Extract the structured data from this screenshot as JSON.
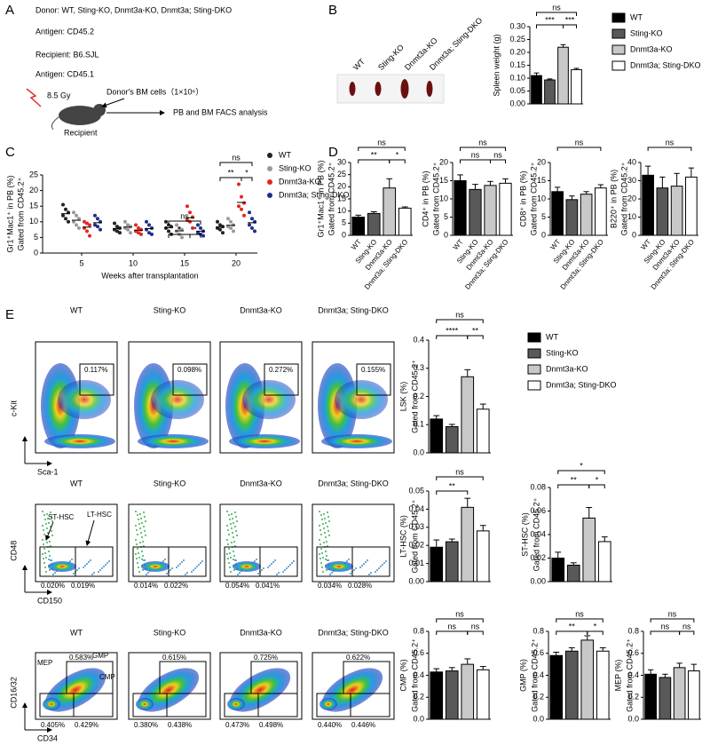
{
  "panels": [
    "A",
    "B",
    "C",
    "D",
    "E"
  ],
  "panel_a": {
    "donor": "Donor: WT, Sting-KO, Dnmt3a-KO, Dnmt3a; Sting-DKO",
    "donor_antigen": "Antigen: CD45.2",
    "recipient": "Recipient: B6.SJL",
    "recipient_antigen": "Antigen: CD45.1",
    "dose": "8.5 Gy",
    "cells": "Donor's BM cells（1×10⁶）",
    "analysis": "PB and BM FACS analysis",
    "mouse_label": "Recipient"
  },
  "panel_b": {
    "photo_labels": [
      "WT",
      "Sting-KO",
      "Dnmt3a-KO",
      "Dnmt3a; Sting-DKO"
    ]
  },
  "flow": {
    "rows": [
      {
        "titles": [
          "WT",
          "Sting-KO",
          "Dnmt3a-KO",
          "Dnmt3a; Sting-DKO"
        ],
        "gates": [
          [
            "0.117%"
          ],
          [
            "0.098%"
          ],
          [
            "0.272%"
          ],
          [
            "0.155%"
          ]
        ],
        "labels": [],
        "x_axis": "Sca-1",
        "y_axis": "c-Kit"
      },
      {
        "titles": [
          "WT",
          "Sting-KO",
          "Dnmt3a-KO",
          "Dnmt3a; Sting-DKO"
        ],
        "gates": [
          [
            "0.020%",
            "0.019%"
          ],
          [
            "0.014%",
            "0.022%"
          ],
          [
            "0.054%",
            "0.041%"
          ],
          [
            "0.034%",
            "0.028%"
          ]
        ],
        "labels": [
          "ST-HSC",
          "LT-HSC"
        ],
        "x_axis": "CD150",
        "y_axis": "CD48"
      },
      {
        "titles": [
          "WT",
          "Sting-KO",
          "Dnmt3a-KO",
          "Dnmt3a; Sting-DKO"
        ],
        "gates": [
          [
            "0.583%",
            "0.405%",
            "0.429%"
          ],
          [
            "0.615%",
            "0.380%",
            "0.438%"
          ],
          [
            "0.725%",
            "0.473%",
            "0.498%"
          ],
          [
            "0.622%",
            "0.440%",
            "0.446%"
          ]
        ],
        "labels": [
          "MEP",
          "GMP",
          "CMP"
        ],
        "x_axis": "CD34",
        "y_axis": "CD16/32"
      }
    ]
  },
  "chart_data": [
    {
      "type": "bar",
      "ylabel": [
        "Spleen weight (g)"
      ],
      "values": [
        0.11,
        0.093,
        0.22,
        0.133
      ],
      "errors": [
        0.01,
        0.004,
        0.01,
        0.005
      ],
      "colors": [
        "#000000",
        "#595959",
        "#c8c8c8",
        "#ffffff"
      ],
      "ylim": [
        0,
        0.3
      ],
      "yticks": [
        {
          "value": 0,
          "label": "0.00"
        },
        0.05,
        {
          "value": 0.1,
          "label": "0.10"
        },
        0.15,
        {
          "value": 0.2,
          "label": "0.20"
        },
        0.25,
        {
          "value": 0.3,
          "label": "0.30"
        }
      ],
      "significance": [
        "ns",
        "***",
        "***"
      ],
      "legend": [
        "WT",
        "Sting-KO",
        "Dnmt3a-KO",
        "Dnmt3a; Sting-DKO"
      ]
    },
    {
      "type": "dot",
      "ylabel": [
        "Gr1⁺Mac1⁺ in PB (%)",
        "Gated from CD45.2⁺"
      ],
      "xlabel": "Weeks after transplantation",
      "categories": [
        "5",
        "10",
        "15",
        "20"
      ],
      "ylim": [
        0,
        25
      ],
      "yticks": [
        0,
        5,
        10,
        15,
        20,
        25
      ],
      "series": [
        {
          "name": "WT",
          "color": "#222222",
          "values": [
            12.6,
            7.8,
            8.1,
            8.3
          ],
          "points": [
            [
              15.5,
              14,
              13,
              12,
              11,
              10
            ],
            [
              9.5,
              8.5,
              8,
              7.5,
              7,
              6.5
            ],
            [
              10,
              9,
              8.5,
              8,
              7,
              6
            ],
            [
              10,
              9,
              8.5,
              8,
              7.5,
              6.5
            ]
          ]
        },
        {
          "name": "Sting-KO",
          "color": "#999999",
          "values": [
            10.5,
            8.3,
            7.1,
            8.9
          ],
          "points": [
            [
              13,
              12,
              11,
              10,
              9,
              8
            ],
            [
              10,
              9,
              8.5,
              8,
              7.5,
              6.5
            ],
            [
              9,
              8,
              7.5,
              7,
              6,
              5
            ],
            [
              11,
              10,
              9,
              8.5,
              8,
              7
            ]
          ]
        },
        {
          "name": "Dnmt3a-KO",
          "color": "#e0281e",
          "values": [
            8.3,
            7.3,
            11.3,
            16.2
          ],
          "points": [
            [
              10,
              9.5,
              9,
              8,
              7,
              5.5
            ],
            [
              9,
              8,
              7.5,
              7,
              6.5,
              6
            ],
            [
              15,
              13,
              11.5,
              10.5,
              10,
              8
            ],
            [
              22,
              18,
              16,
              15,
              14,
              12
            ]
          ]
        },
        {
          "name": "Dnmt3a; Sting-DKO",
          "color": "#1f2f8c",
          "values": [
            9.7,
            7.8,
            7,
            9.7
          ],
          "points": [
            [
              12,
              11,
              10,
              9,
              8.5,
              7.5
            ],
            [
              10,
              9,
              8,
              7.5,
              6.5,
              6
            ],
            [
              9,
              8,
              7,
              6.5,
              6,
              5.5
            ],
            [
              13,
              11,
              10,
              9,
              8,
              7
            ]
          ]
        }
      ],
      "significance": [
        [],
        [],
        [
          "ns",
          "*",
          "*"
        ],
        [
          "ns",
          "**",
          "*"
        ]
      ]
    },
    {
      "type": "bar",
      "ylabel": [
        "Gr1⁺Mac1⁺ in PB (%)",
        "Gated from CD45.2⁺"
      ],
      "categories": [
        "WT",
        "Sting-KO",
        "Dnmt3a-KO",
        "Dnmt3a; Sting-DKO"
      ],
      "values": [
        7.5,
        9,
        19.5,
        11.2
      ],
      "errors": [
        0.8,
        0.7,
        3.8,
        0.5
      ],
      "colors": [
        "#000000",
        "#595959",
        "#c8c8c8",
        "#ffffff"
      ],
      "ylim": [
        0,
        30
      ],
      "yticks": [
        0,
        5,
        10,
        15,
        20,
        25,
        30
      ],
      "significance": [
        "ns",
        "**",
        "*"
      ]
    },
    {
      "type": "bar",
      "ylabel": [
        "CD4⁺ in PB (%)",
        "Gated from CD45.2⁺"
      ],
      "categories": [
        "WT",
        "Sting-KO",
        "Dnmt3a-KO",
        "Dnmt3a; Sting-DKO"
      ],
      "values": [
        15,
        12.6,
        13.7,
        14.3
      ],
      "errors": [
        1.6,
        1.4,
        1.1,
        1.2
      ],
      "colors": [
        "#000000",
        "#595959",
        "#c8c8c8",
        "#ffffff"
      ],
      "ylim": [
        0,
        20
      ],
      "yticks": [
        0,
        5,
        10,
        15,
        20
      ],
      "significance": [
        "ns",
        "ns",
        "ns"
      ]
    },
    {
      "type": "bar",
      "ylabel": [
        "CD8⁺ in PB (%)",
        "Gated from CD45.2⁺"
      ],
      "categories": [
        "WT",
        "Sting-KO",
        "Dnmt3a-KO",
        "Dnmt3a; Sting-DKO"
      ],
      "values": [
        12,
        9.8,
        11.3,
        13
      ],
      "errors": [
        1.2,
        1,
        0.7,
        0.9
      ],
      "colors": [
        "#000000",
        "#595959",
        "#c8c8c8",
        "#ffffff"
      ],
      "ylim": [
        0,
        20
      ],
      "yticks": [
        0,
        5,
        10,
        15,
        20
      ],
      "significance": [
        "ns"
      ]
    },
    {
      "type": "bar",
      "ylabel": [
        "B220⁺ in PB (%)",
        "Gated from CD45.2⁺"
      ],
      "categories": [
        "WT",
        "Sting-KO",
        "Dnmt3a-KO",
        "Dnmt3a; Sting-DKO"
      ],
      "values": [
        33,
        26,
        27,
        32
      ],
      "errors": [
        5,
        6,
        7,
        5
      ],
      "colors": [
        "#000000",
        "#595959",
        "#c8c8c8",
        "#ffffff"
      ],
      "ylim": [
        0,
        40
      ],
      "yticks": [
        0,
        10,
        20,
        30,
        40
      ],
      "significance": [
        "ns"
      ]
    },
    {
      "type": "bar",
      "ylabel": [
        "LSK (%)",
        "Gated from CD45.2⁺"
      ],
      "values": [
        0.12,
        0.093,
        0.27,
        0.155
      ],
      "errors": [
        0.012,
        0.008,
        0.025,
        0.018
      ],
      "colors": [
        "#000000",
        "#595959",
        "#c8c8c8",
        "#ffffff"
      ],
      "ylim": [
        0,
        0.4
      ],
      "yticks": [
        {
          "value": 0,
          "label": "0.0"
        },
        0.1,
        0.2,
        0.3,
        0.4
      ],
      "significance": [
        "ns",
        "****",
        "**"
      ],
      "legend": [
        "WT",
        "Sting-KO",
        "Dnmt3a-KO",
        "Dnmt3a; Sting-DKO"
      ]
    },
    {
      "type": "bar",
      "ylabel": [
        "LT-HSC (%)",
        "Gated from CD45.2⁺"
      ],
      "values": [
        0.019,
        0.022,
        0.041,
        0.028
      ],
      "errors": [
        0.004,
        0.0015,
        0.005,
        0.003
      ],
      "colors": [
        "#000000",
        "#595959",
        "#c8c8c8",
        "#ffffff"
      ],
      "ylim": [
        0,
        0.05
      ],
      "yticks": [
        {
          "value": 0,
          "label": "0.00"
        },
        0.01,
        0.02,
        0.03,
        0.04,
        0.05
      ],
      "significance": [
        "ns",
        "**"
      ]
    },
    {
      "type": "bar",
      "ylabel": [
        "ST-HSC (%)",
        "Gated from CD45.2⁺"
      ],
      "values": [
        0.02,
        0.014,
        0.054,
        0.034
      ],
      "errors": [
        0.005,
        0.002,
        0.009,
        0.004
      ],
      "colors": [
        "#000000",
        "#595959",
        "#c8c8c8",
        "#ffffff"
      ],
      "ylim": [
        0,
        0.08
      ],
      "yticks": [
        {
          "value": 0,
          "label": "0.00"
        },
        0.02,
        0.04,
        0.06,
        0.08
      ],
      "significance": [
        "*",
        "**",
        "*"
      ]
    },
    {
      "type": "bar",
      "ylabel": [
        "CMP (%)",
        "Gated from CD45.2⁺"
      ],
      "values": [
        0.43,
        0.44,
        0.5,
        0.45
      ],
      "errors": [
        0.03,
        0.03,
        0.05,
        0.03
      ],
      "colors": [
        "#000000",
        "#595959",
        "#c8c8c8",
        "#ffffff"
      ],
      "ylim": [
        0,
        0.8
      ],
      "yticks": [
        {
          "value": 0,
          "label": "0.0"
        },
        0.2,
        0.4,
        0.6,
        0.8
      ],
      "significance": [
        "ns",
        "ns",
        "ns"
      ]
    },
    {
      "type": "bar",
      "ylabel": [
        "GMP (%)",
        "Gated from CD45.2⁺"
      ],
      "values": [
        0.58,
        0.62,
        0.72,
        0.62
      ],
      "errors": [
        0.03,
        0.03,
        0.04,
        0.03
      ],
      "colors": [
        "#000000",
        "#595959",
        "#c8c8c8",
        "#ffffff"
      ],
      "ylim": [
        0,
        0.8
      ],
      "yticks": [
        {
          "value": 0,
          "label": "0.0"
        },
        0.2,
        0.4,
        0.6,
        0.8
      ],
      "significance": [
        "ns",
        "**",
        "*"
      ]
    },
    {
      "type": "bar",
      "ylabel": [
        "MEP (%)",
        "Gated from CD45.2⁺"
      ],
      "values": [
        0.41,
        0.38,
        0.47,
        0.44
      ],
      "errors": [
        0.04,
        0.03,
        0.04,
        0.06
      ],
      "colors": [
        "#000000",
        "#595959",
        "#c8c8c8",
        "#ffffff"
      ],
      "ylim": [
        0,
        0.8
      ],
      "yticks": [
        {
          "value": 0,
          "label": "0.0"
        },
        0.2,
        0.4,
        0.6,
        0.8
      ],
      "significance": [
        "ns",
        "ns",
        "ns"
      ]
    }
  ]
}
